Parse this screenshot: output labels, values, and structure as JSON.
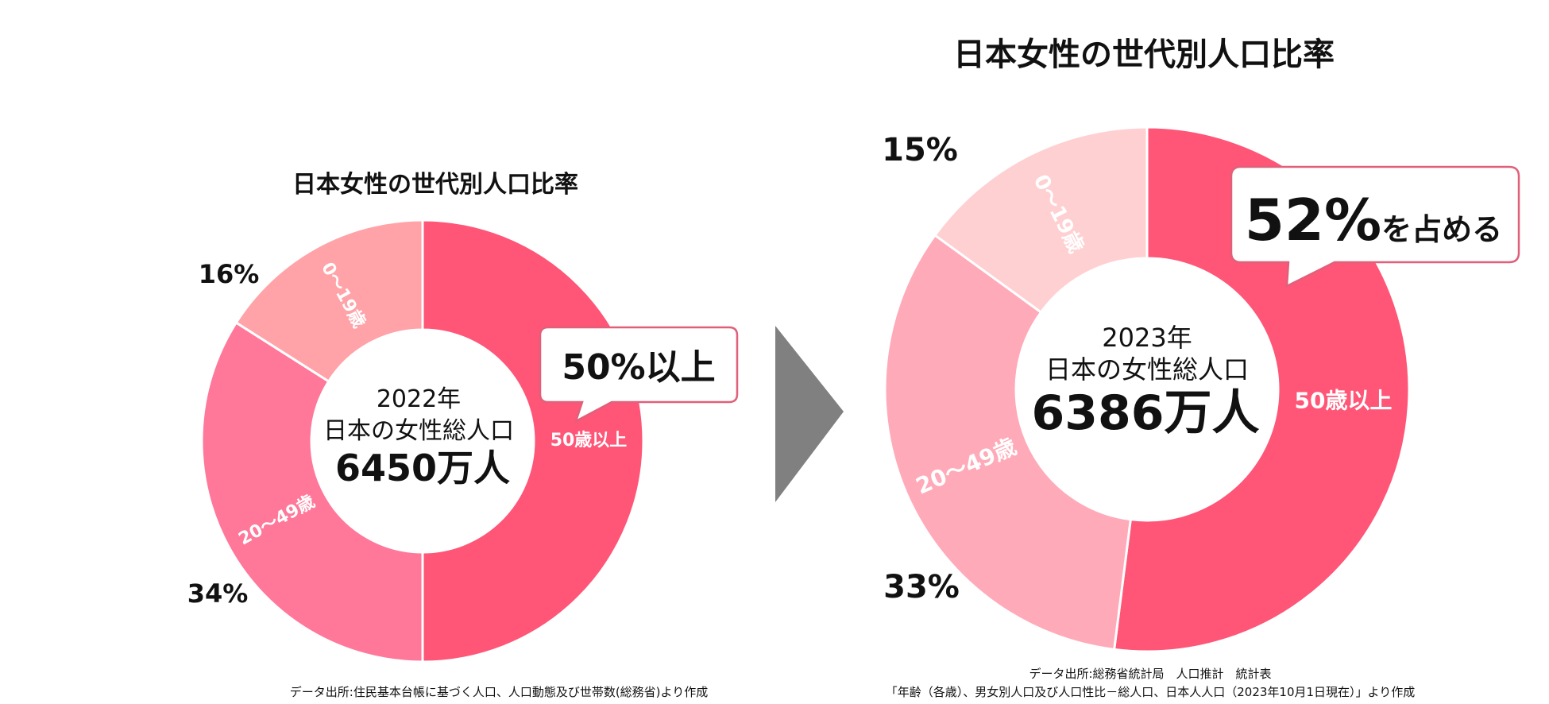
{
  "colors": {
    "seg_50plus": "#ff5577",
    "arrow": "#808080",
    "text": "#111111",
    "callout_border": "#e0607a",
    "seg_label": "#ffffff"
  },
  "chart_data": [
    {
      "type": "donut",
      "title": "日本女性の世代別人口比率",
      "center_year": "2022年",
      "center_label": "日本の女性総人口",
      "center_total": "6450万人",
      "callout": "50%以上",
      "categories": [
        "50歳以上",
        "20～49歳",
        "0～19歳"
      ],
      "values": [
        50,
        34,
        16
      ],
      "value_labels": [
        "",
        "34%",
        "16%"
      ],
      "segment_colors": [
        "#ff5577",
        "#ff7799",
        "#ffa3a8"
      ],
      "source": "データ出所:住民基本台帳に基づく人口、人口動態及び世帯数(総務省)より作成"
    },
    {
      "type": "donut",
      "title": "日本女性の世代別人口比率",
      "center_year": "2023年",
      "center_label": "日本の女性総人口",
      "center_total": "6386万人",
      "callout_big": "52%",
      "callout_small": "を占める",
      "categories": [
        "50歳以上",
        "20～49歳",
        "0～19歳"
      ],
      "values": [
        52,
        33,
        15
      ],
      "value_labels": [
        "",
        "33%",
        "15%"
      ],
      "segment_colors": [
        "#ff5577",
        "#ffaab8",
        "#ffd0d2"
      ],
      "source_line1": "データ出所:総務省統計局　人口推計　統計表",
      "source_line2": "「年齢（各歳）、男女別人口及び人口性比－総人口、日本人人口（2023年10月1日現在）」より作成"
    }
  ]
}
